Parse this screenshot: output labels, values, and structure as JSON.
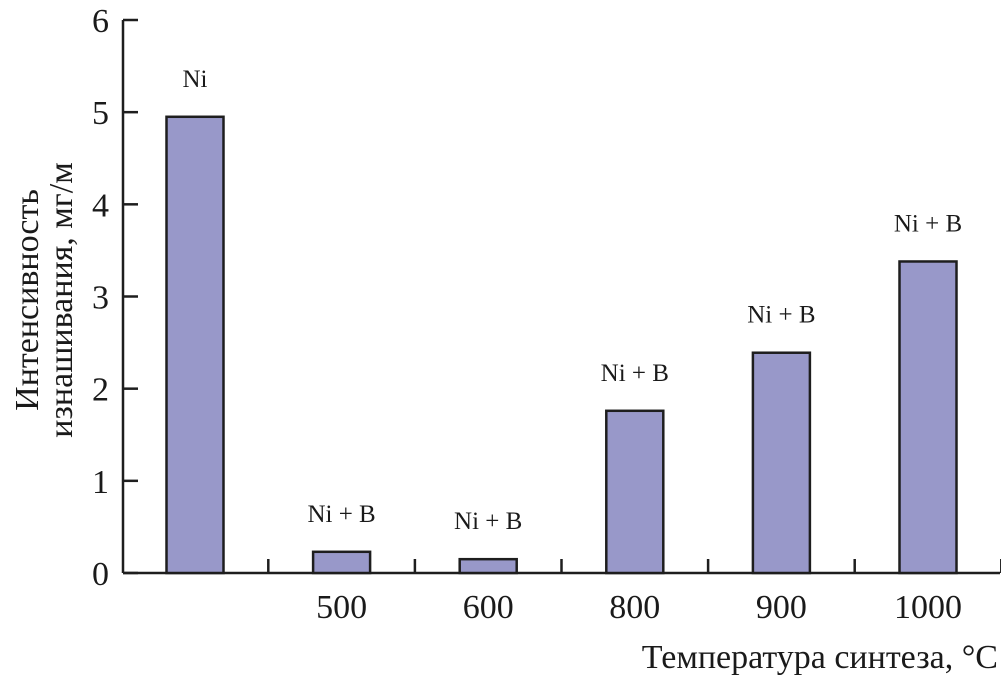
{
  "chart_data": {
    "type": "bar",
    "title": "",
    "xlabel": "Температура синтеза, °C",
    "ylabel_line1": "Интенсивность",
    "ylabel_line2": "изнашивания, мг/м",
    "categories": [
      "",
      "500",
      "600",
      "800",
      "900",
      "1000"
    ],
    "values": [
      4.95,
      0.23,
      0.15,
      1.76,
      2.39,
      3.38
    ],
    "bar_labels": [
      "Ni",
      "Ni + B",
      "Ni + B",
      "Ni + B",
      "Ni + B",
      "Ni + B"
    ],
    "ylim": [
      0,
      6
    ],
    "yticks": [
      "0",
      "1",
      "2",
      "3",
      "4",
      "5",
      "6"
    ],
    "grid": false,
    "bar_color": "#9898c9",
    "bar_edge_color": "#1e1e1e"
  }
}
